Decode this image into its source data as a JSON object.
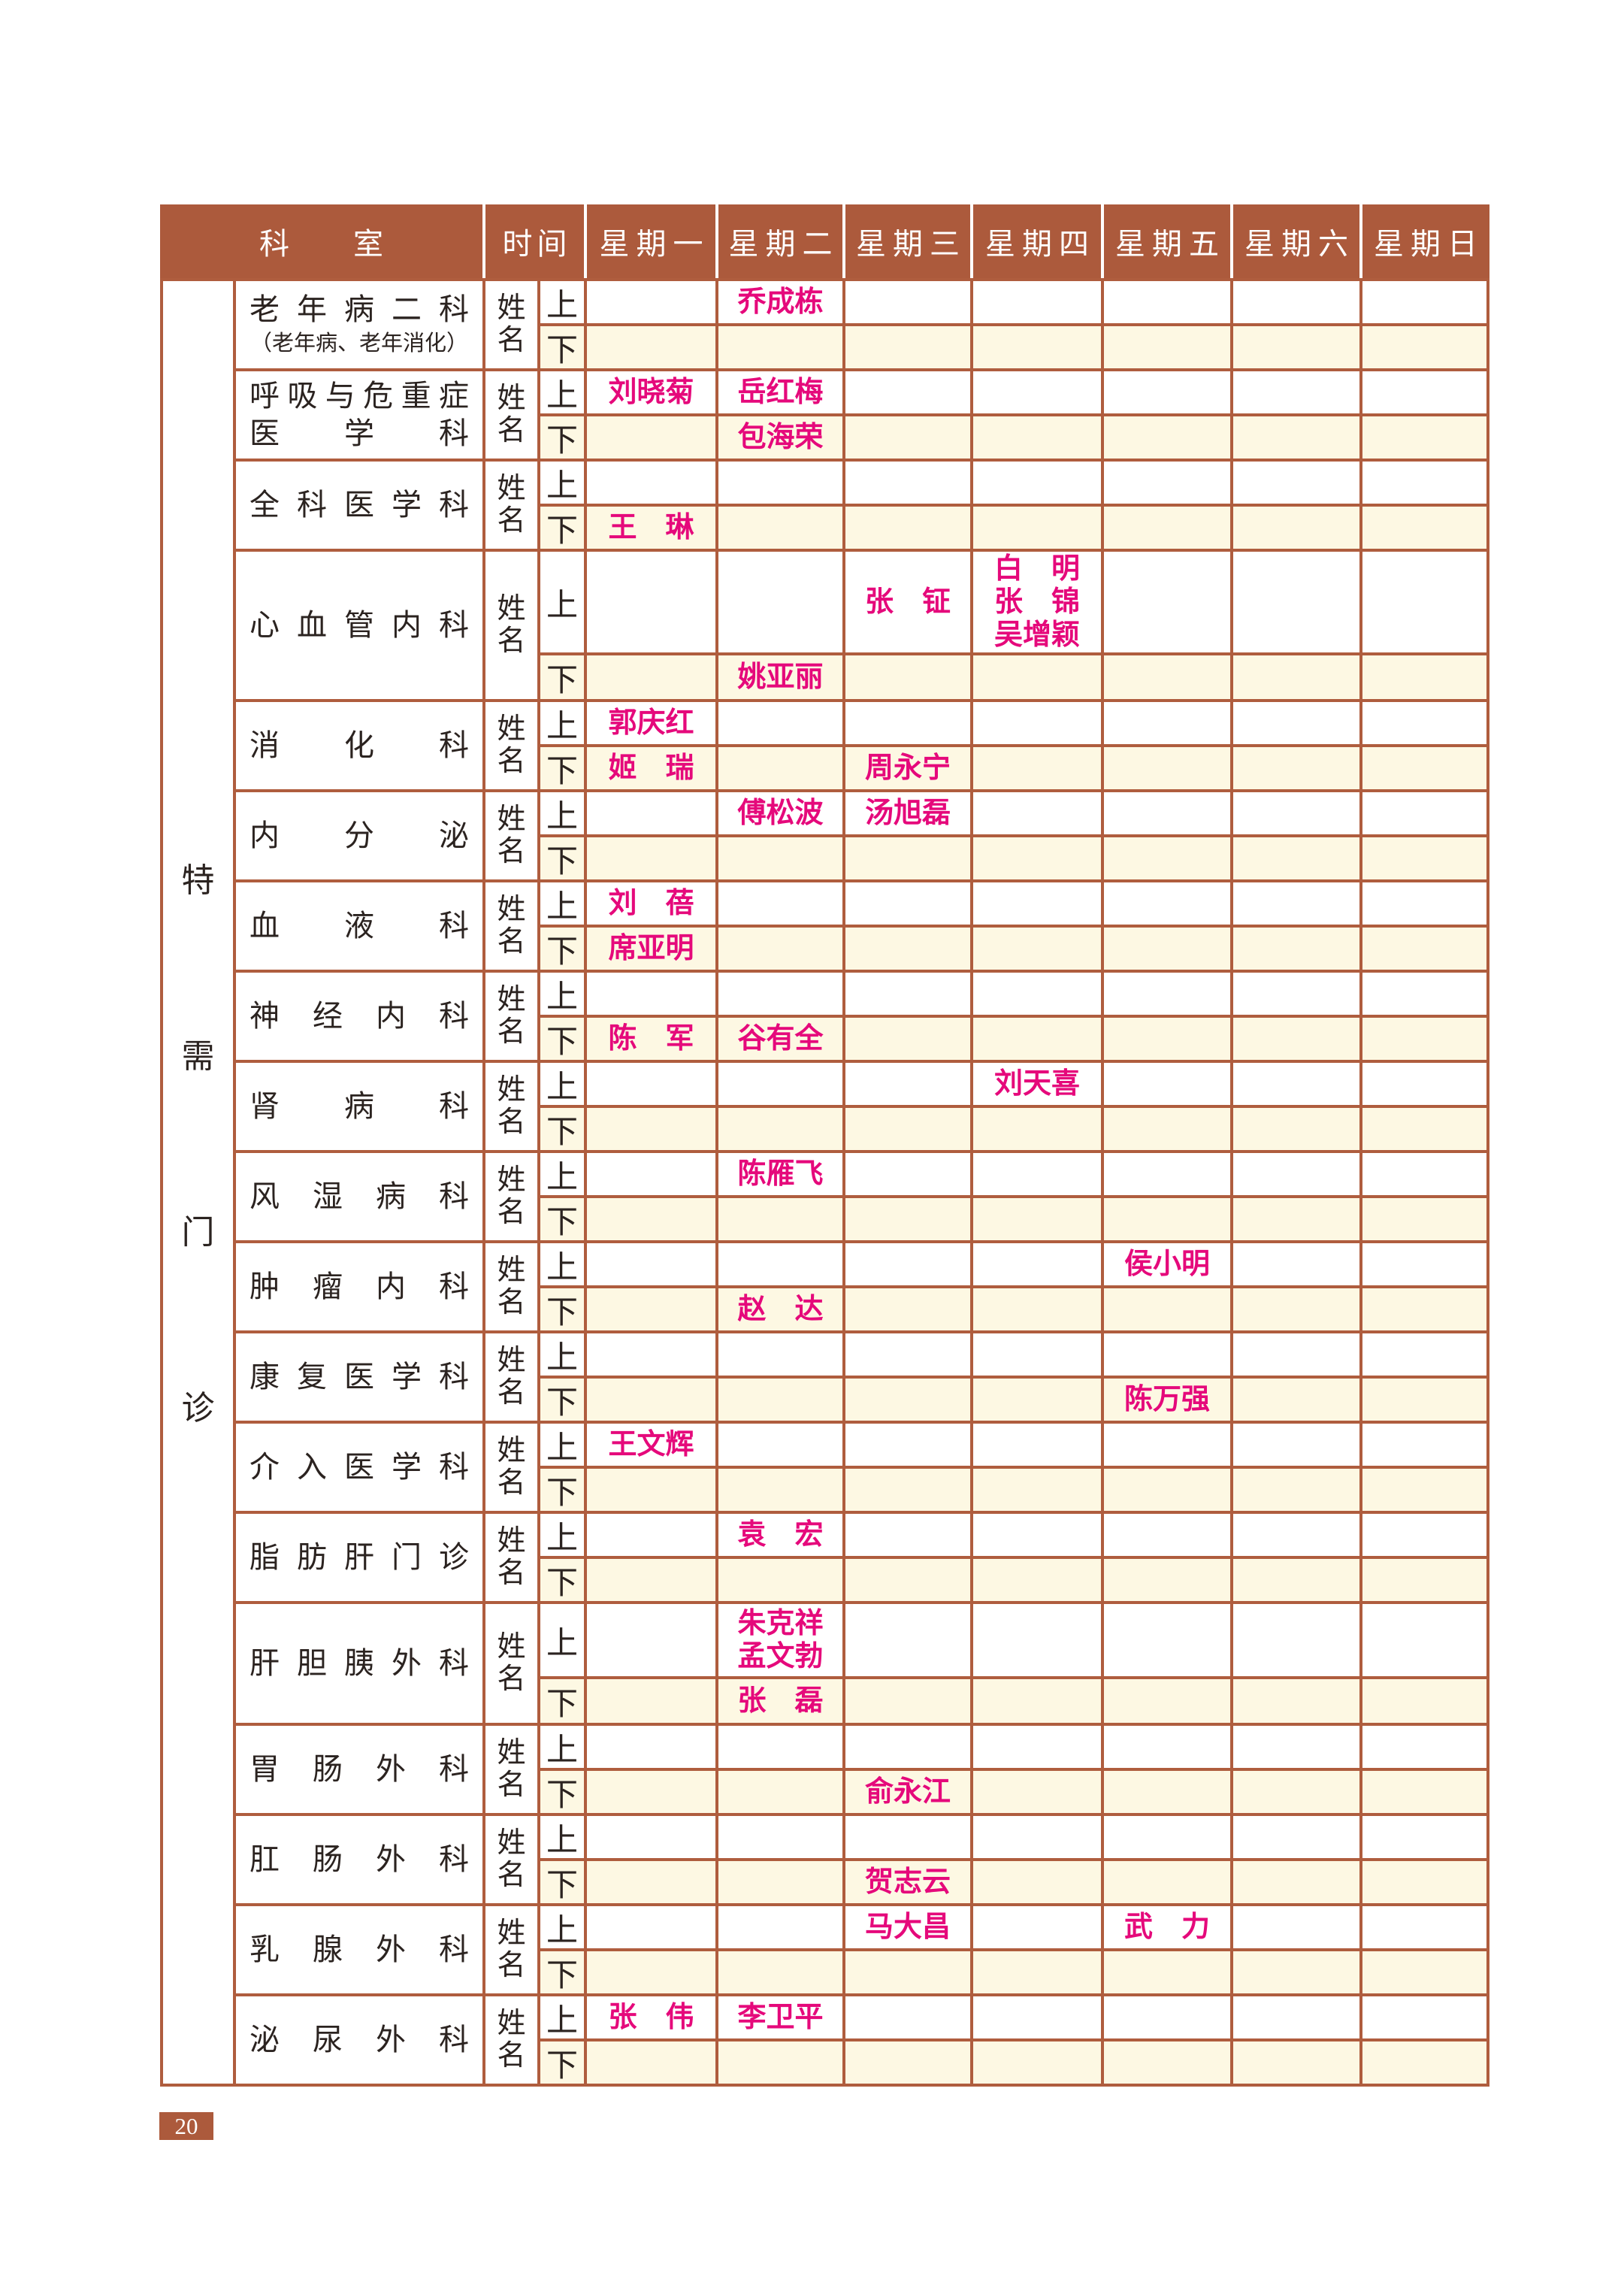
{
  "page": {
    "number": "20"
  },
  "colors": {
    "header_bg": "#AC5A3C",
    "grid_line": "#AF5D3E",
    "pm_row_bg": "#FDF8E3",
    "doctor_name": "#E5097B",
    "text": "#2B2320"
  },
  "table": {
    "corner_header": "科室",
    "time_header": "时间",
    "day_headers": [
      "星期一",
      "星期二",
      "星期三",
      "星期四",
      "星期五",
      "星期六",
      "星期日"
    ],
    "side_label": "特需门诊",
    "name_column_label": "姓名",
    "am_label": "上",
    "pm_label": "下",
    "departments": [
      {
        "name_lines": [
          "老年病二科",
          "（老年病、老年消化）"
        ],
        "am": {
          "2": [
            "乔成栋"
          ]
        },
        "pm": {}
      },
      {
        "name_lines": [
          "呼吸与危重症",
          "医学科"
        ],
        "am": {
          "1": [
            "刘晓菊"
          ],
          "2": [
            "岳红梅"
          ]
        },
        "pm": {
          "2": [
            "包海荣"
          ]
        }
      },
      {
        "name_lines": [
          "全科医学科"
        ],
        "am": {},
        "pm": {
          "1": [
            "王　琳"
          ]
        }
      },
      {
        "name_lines": [
          "心血管内科"
        ],
        "am": {
          "3": [
            "张　钲"
          ],
          "4": [
            "白　明",
            "张　锦",
            "吴增颖"
          ]
        },
        "pm": {
          "2": [
            "姚亚丽"
          ]
        }
      },
      {
        "name_lines": [
          "消化科"
        ],
        "am": {
          "1": [
            "郭庆红"
          ]
        },
        "pm": {
          "1": [
            "姬　瑞"
          ],
          "3": [
            "周永宁"
          ]
        }
      },
      {
        "name_lines": [
          "内分泌"
        ],
        "am": {
          "2": [
            "傅松波"
          ],
          "3": [
            "汤旭磊"
          ]
        },
        "pm": {}
      },
      {
        "name_lines": [
          "血液科"
        ],
        "am": {
          "1": [
            "刘　蓓"
          ]
        },
        "pm": {
          "1": [
            "席亚明"
          ]
        }
      },
      {
        "name_lines": [
          "神经内科"
        ],
        "am": {},
        "pm": {
          "1": [
            "陈　军"
          ],
          "2": [
            "谷有全"
          ]
        }
      },
      {
        "name_lines": [
          "肾病科"
        ],
        "am": {
          "4": [
            "刘天喜"
          ]
        },
        "pm": {}
      },
      {
        "name_lines": [
          "风湿病科"
        ],
        "am": {
          "2": [
            "陈雁飞"
          ]
        },
        "pm": {}
      },
      {
        "name_lines": [
          "肿瘤内科"
        ],
        "am": {
          "5": [
            "侯小明"
          ]
        },
        "pm": {
          "2": [
            "赵　达"
          ]
        }
      },
      {
        "name_lines": [
          "康复医学科"
        ],
        "am": {},
        "pm": {
          "5": [
            "陈万强"
          ]
        }
      },
      {
        "name_lines": [
          "介入医学科"
        ],
        "am": {
          "1": [
            "王文辉"
          ]
        },
        "pm": {}
      },
      {
        "name_lines": [
          "脂肪肝门诊"
        ],
        "am": {
          "2": [
            "袁　宏"
          ]
        },
        "pm": {}
      },
      {
        "name_lines": [
          "肝胆胰外科"
        ],
        "am": {
          "2": [
            "朱克祥",
            "孟文勃"
          ]
        },
        "pm": {
          "2": [
            "张　磊"
          ]
        }
      },
      {
        "name_lines": [
          "胃肠外科"
        ],
        "am": {},
        "pm": {
          "3": [
            "俞永江"
          ]
        }
      },
      {
        "name_lines": [
          "肛肠外科"
        ],
        "am": {},
        "pm": {
          "3": [
            "贺志云"
          ]
        }
      },
      {
        "name_lines": [
          "乳腺外科"
        ],
        "am": {
          "3": [
            "马大昌"
          ],
          "5": [
            "武　力"
          ]
        },
        "pm": {}
      },
      {
        "name_lines": [
          "泌尿外科"
        ],
        "am": {
          "1": [
            "张　伟"
          ],
          "2": [
            "李卫平"
          ]
        },
        "pm": {}
      }
    ]
  }
}
